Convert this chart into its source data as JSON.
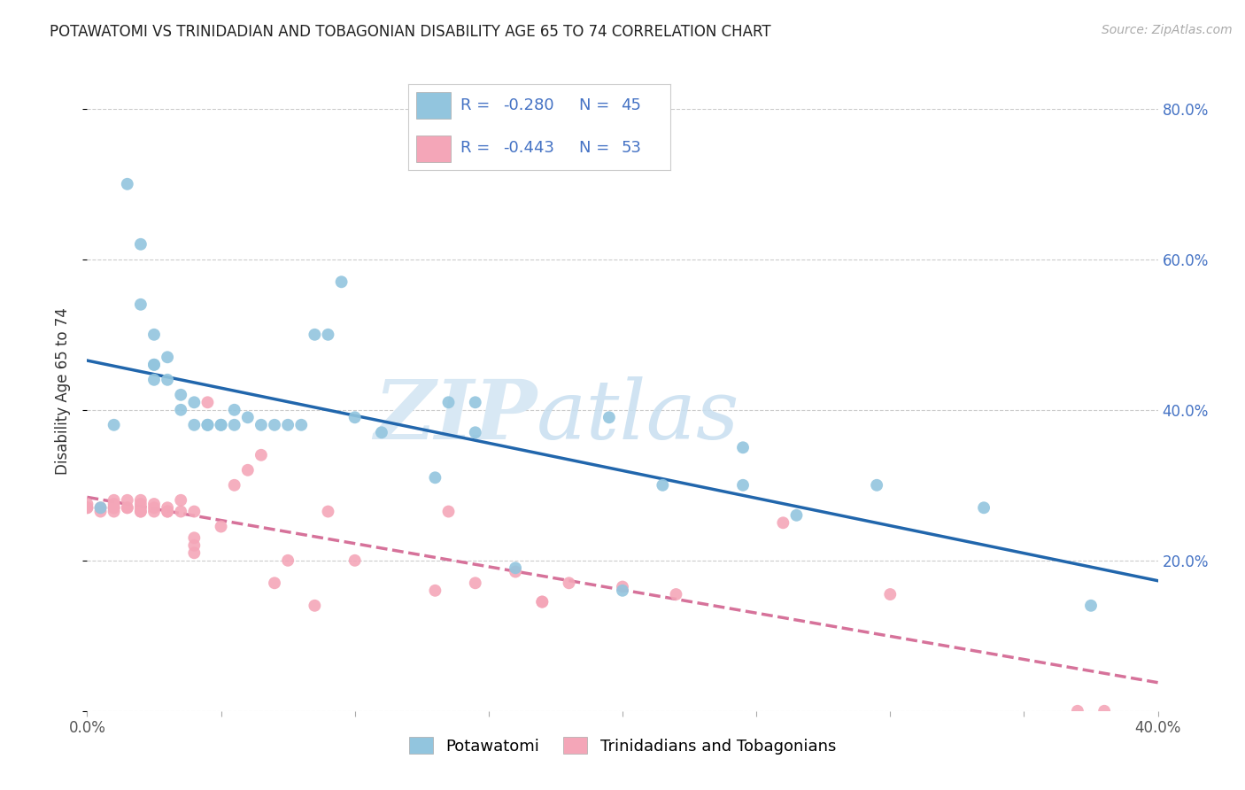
{
  "title": "POTAWATOMI VS TRINIDADIAN AND TOBAGONIAN DISABILITY AGE 65 TO 74 CORRELATION CHART",
  "source": "Source: ZipAtlas.com",
  "ylabel": "Disability Age 65 to 74",
  "xlim": [
    0.0,
    0.4
  ],
  "ylim": [
    0.0,
    0.85
  ],
  "legend_r1": "R = -0.280",
  "legend_n1": "N = 45",
  "legend_r2": "R = -0.443",
  "legend_n2": "N = 53",
  "potawatomi_x": [
    0.015,
    0.02,
    0.02,
    0.025,
    0.025,
    0.025,
    0.025,
    0.03,
    0.03,
    0.035,
    0.035,
    0.04,
    0.04,
    0.045,
    0.045,
    0.05,
    0.05,
    0.055,
    0.055,
    0.06,
    0.065,
    0.07,
    0.075,
    0.08,
    0.085,
    0.09,
    0.095,
    0.1,
    0.11,
    0.13,
    0.135,
    0.145,
    0.145,
    0.16,
    0.195,
    0.2,
    0.215,
    0.245,
    0.245,
    0.265,
    0.295,
    0.335,
    0.375,
    0.005,
    0.01
  ],
  "potawatomi_y": [
    0.7,
    0.62,
    0.54,
    0.46,
    0.46,
    0.5,
    0.44,
    0.44,
    0.47,
    0.4,
    0.42,
    0.38,
    0.41,
    0.38,
    0.38,
    0.38,
    0.38,
    0.38,
    0.4,
    0.39,
    0.38,
    0.38,
    0.38,
    0.38,
    0.5,
    0.5,
    0.57,
    0.39,
    0.37,
    0.31,
    0.41,
    0.41,
    0.37,
    0.19,
    0.39,
    0.16,
    0.3,
    0.3,
    0.35,
    0.26,
    0.3,
    0.27,
    0.14,
    0.27,
    0.38
  ],
  "trinidadian_x": [
    0.0,
    0.0,
    0.0,
    0.005,
    0.005,
    0.01,
    0.01,
    0.01,
    0.01,
    0.01,
    0.015,
    0.015,
    0.015,
    0.02,
    0.02,
    0.02,
    0.02,
    0.02,
    0.025,
    0.025,
    0.025,
    0.03,
    0.03,
    0.03,
    0.035,
    0.035,
    0.04,
    0.04,
    0.04,
    0.04,
    0.045,
    0.05,
    0.055,
    0.06,
    0.065,
    0.07,
    0.075,
    0.085,
    0.09,
    0.1,
    0.13,
    0.145,
    0.16,
    0.18,
    0.2,
    0.22,
    0.135,
    0.26,
    0.3,
    0.37,
    0.38,
    0.17,
    0.17
  ],
  "trinidadian_y": [
    0.27,
    0.27,
    0.275,
    0.265,
    0.27,
    0.27,
    0.275,
    0.28,
    0.27,
    0.265,
    0.27,
    0.27,
    0.28,
    0.265,
    0.27,
    0.275,
    0.28,
    0.265,
    0.265,
    0.27,
    0.275,
    0.265,
    0.27,
    0.265,
    0.265,
    0.28,
    0.21,
    0.22,
    0.23,
    0.265,
    0.41,
    0.245,
    0.3,
    0.32,
    0.34,
    0.17,
    0.2,
    0.14,
    0.265,
    0.2,
    0.16,
    0.17,
    0.185,
    0.17,
    0.165,
    0.155,
    0.265,
    0.25,
    0.155,
    0.0,
    0.0,
    0.145,
    0.145
  ],
  "blue_color": "#92c5de",
  "pink_color": "#f4a6b8",
  "trendline_blue": "#2166ac",
  "trendline_pink": "#d6729a",
  "background_color": "#ffffff",
  "grid_color": "#cccccc",
  "watermark_zip": "ZIP",
  "watermark_atlas": "atlas",
  "watermark_color": "#d8e8f4",
  "legend_text_color": "#4472c4",
  "bottom_legend_label1": "Potawatomi",
  "bottom_legend_label2": "Trinidadians and Tobagonians"
}
